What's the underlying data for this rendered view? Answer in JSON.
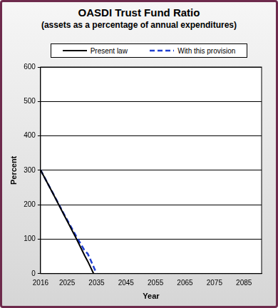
{
  "chart_data": {
    "type": "line",
    "title": "OASDI Trust Fund Ratio",
    "subtitle": "(assets as a percentage of annual expenditures)",
    "x_label": "Year",
    "y_label": "Percent",
    "x": [
      2016,
      2020,
      2024,
      2028,
      2031,
      2032,
      2034,
      2035
    ],
    "series": [
      {
        "name": "Present law",
        "color": "#000000",
        "line_style": "solid",
        "values": [
          301,
          236,
          170,
          104,
          52,
          36,
          0,
          null
        ]
      },
      {
        "name": "With this provision",
        "color": "#1f3fd0",
        "line_style": "dashed",
        "values": [
          301,
          237,
          172,
          110,
          66,
          58,
          20,
          0
        ]
      }
    ],
    "xlim": [
      2016,
      2091
    ],
    "xticks": [
      2016,
      2025,
      2035,
      2045,
      2055,
      2065,
      2075,
      2085
    ],
    "ylim": [
      0,
      600
    ],
    "yticks": [
      0,
      100,
      200,
      300,
      400,
      500,
      600
    ],
    "grid": true,
    "legend": "top"
  }
}
